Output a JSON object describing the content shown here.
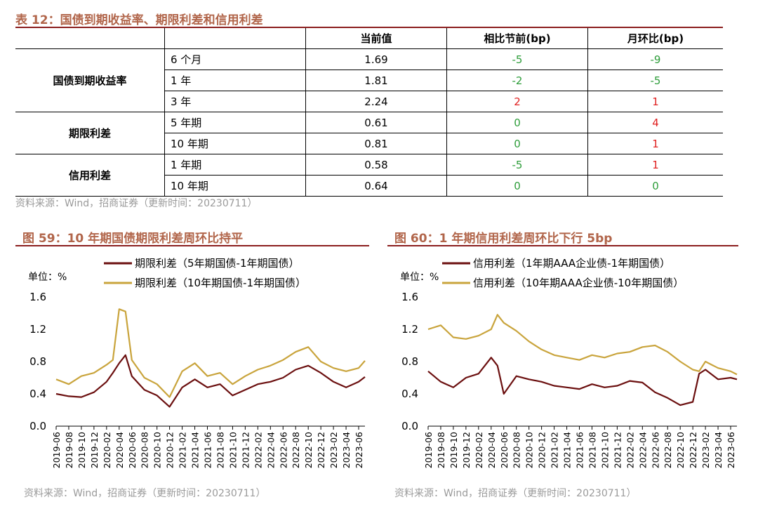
{
  "table": {
    "title": "表 12：国债到期收益率、期限利差和信用利差",
    "headers": [
      "",
      "",
      "当前值",
      "相比节前(bp)",
      "月环比(bp)"
    ],
    "groups": [
      {
        "name": "国债到期收益率",
        "rows": [
          {
            "term": "6 个月",
            "value": "1.69",
            "vs_holiday": "-5",
            "mom": "-9"
          },
          {
            "term": "1 年",
            "value": "1.81",
            "vs_holiday": "-2",
            "mom": "-5"
          },
          {
            "term": "3 年",
            "value": "2.24",
            "vs_holiday": "2",
            "mom": "1"
          }
        ]
      },
      {
        "name": "期限利差",
        "rows": [
          {
            "term": "5 年期",
            "value": "0.61",
            "vs_holiday": "0",
            "mom": "4"
          },
          {
            "term": "10 年期",
            "value": "0.81",
            "vs_holiday": "0",
            "mom": "1"
          }
        ]
      },
      {
        "name": "信用利差",
        "rows": [
          {
            "term": "1 年期",
            "value": "0.58",
            "vs_holiday": "-5",
            "mom": "1"
          },
          {
            "term": "10 年期",
            "value": "0.64",
            "vs_holiday": "0",
            "mom": "0"
          }
        ]
      }
    ],
    "colors": {
      "negative": "#2e9d3a",
      "positive": "#e02020",
      "zero": "#2e9d3a"
    },
    "source": "资料来源：Wind，招商证券（更新时间：20230711）"
  },
  "chart_data": [
    {
      "type": "line",
      "title": "图 59：10 年期国债期限利差周环比持平",
      "unit_label": "单位：%",
      "ylim": [
        0.0,
        1.6
      ],
      "yticks": [
        "0.0",
        "0.4",
        "0.8",
        "1.2",
        "1.6"
      ],
      "xticks": [
        "2019-06",
        "2019-08",
        "2019-10",
        "2019-12",
        "2020-02",
        "2020-04",
        "2020-06",
        "2020-08",
        "2020-10",
        "2020-12",
        "2021-02",
        "2021-04",
        "2021-06",
        "2021-08",
        "2021-10",
        "2021-12",
        "2022-02",
        "2022-04",
        "2022-06",
        "2022-08",
        "2022-10",
        "2022-12",
        "2023-02",
        "2023-04",
        "2023-06"
      ],
      "x": [
        "2019-06",
        "2019-08",
        "2019-10",
        "2019-12",
        "2020-02",
        "2020-03",
        "2020-04",
        "2020-05",
        "2020-06",
        "2020-08",
        "2020-10",
        "2020-12",
        "2021-02",
        "2021-04",
        "2021-06",
        "2021-08",
        "2021-10",
        "2021-12",
        "2022-02",
        "2022-04",
        "2022-06",
        "2022-08",
        "2022-10",
        "2022-12",
        "2023-02",
        "2023-04",
        "2023-06",
        "2023-07"
      ],
      "series": [
        {
          "name": "期限利差（5年期国债-1年期国债）",
          "color": "#6b0f0f",
          "values": [
            0.4,
            0.37,
            0.36,
            0.42,
            0.55,
            0.66,
            0.78,
            0.88,
            0.62,
            0.45,
            0.38,
            0.24,
            0.48,
            0.58,
            0.48,
            0.52,
            0.38,
            0.45,
            0.52,
            0.55,
            0.6,
            0.7,
            0.75,
            0.66,
            0.55,
            0.48,
            0.55,
            0.61
          ]
        },
        {
          "name": "期限利差（10年期国债-1年期国债）",
          "color": "#c9a43c",
          "values": [
            0.58,
            0.52,
            0.62,
            0.66,
            0.76,
            0.82,
            1.45,
            1.42,
            0.82,
            0.6,
            0.52,
            0.36,
            0.68,
            0.78,
            0.62,
            0.66,
            0.52,
            0.62,
            0.7,
            0.75,
            0.82,
            0.92,
            0.98,
            0.8,
            0.72,
            0.68,
            0.72,
            0.81
          ]
        }
      ],
      "source": "资料来源：Wind，招商证券（更新时间：20230711）"
    },
    {
      "type": "line",
      "title": "图 60：1 年期信用利差周环比下行 5bp",
      "unit_label": "单位：%",
      "ylim": [
        0.0,
        1.6
      ],
      "yticks": [
        "0.0",
        "0.4",
        "0.8",
        "1.2",
        "1.6"
      ],
      "xticks": [
        "2019-06",
        "2019-08",
        "2019-10",
        "2019-12",
        "2020-02",
        "2020-04",
        "2020-06",
        "2020-08",
        "2020-10",
        "2020-12",
        "2021-02",
        "2021-04",
        "2021-06",
        "2021-08",
        "2021-10",
        "2021-12",
        "2022-02",
        "2022-04",
        "2022-06",
        "2022-08",
        "2022-10",
        "2022-12",
        "2023-02",
        "2023-04",
        "2023-06"
      ],
      "x": [
        "2019-06",
        "2019-08",
        "2019-10",
        "2019-12",
        "2020-02",
        "2020-04",
        "2020-05",
        "2020-06",
        "2020-08",
        "2020-10",
        "2020-12",
        "2021-02",
        "2021-04",
        "2021-06",
        "2021-08",
        "2021-10",
        "2021-12",
        "2022-02",
        "2022-04",
        "2022-06",
        "2022-08",
        "2022-10",
        "2022-12",
        "2023-01",
        "2023-02",
        "2023-04",
        "2023-06",
        "2023-07"
      ],
      "series": [
        {
          "name": "信用利差（1年期AAA企业债-1年期国债）",
          "color": "#6b0f0f",
          "values": [
            0.68,
            0.55,
            0.48,
            0.6,
            0.65,
            0.85,
            0.75,
            0.4,
            0.62,
            0.58,
            0.55,
            0.5,
            0.48,
            0.46,
            0.52,
            0.48,
            0.5,
            0.56,
            0.54,
            0.42,
            0.35,
            0.26,
            0.3,
            0.65,
            0.7,
            0.58,
            0.6,
            0.58
          ]
        },
        {
          "name": "信用利差（10年期AAA企业债-10年期国债）",
          "color": "#c9a43c",
          "values": [
            1.2,
            1.25,
            1.1,
            1.08,
            1.12,
            1.2,
            1.38,
            1.28,
            1.18,
            1.05,
            0.95,
            0.88,
            0.85,
            0.82,
            0.88,
            0.85,
            0.9,
            0.92,
            0.98,
            1.0,
            0.92,
            0.8,
            0.7,
            0.68,
            0.8,
            0.72,
            0.68,
            0.64
          ]
        }
      ],
      "source": "资料来源：Wind，招商证券（更新时间：20230711）"
    }
  ]
}
